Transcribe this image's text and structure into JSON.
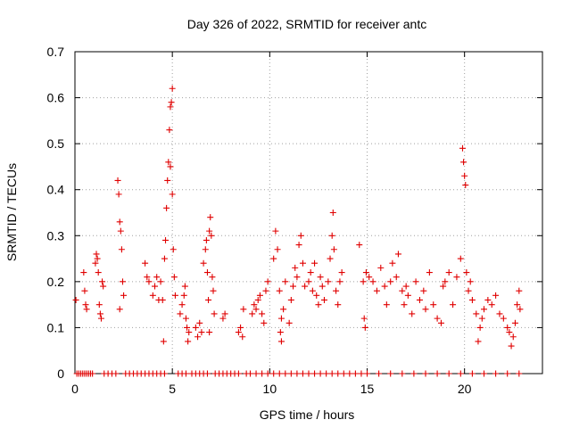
{
  "chart_data": {
    "type": "scatter",
    "title": "Day 326 of 2022, SRMTID for receiver antc",
    "xlabel": "GPS time / hours",
    "ylabel": "SRMTID / TECUs",
    "xlim": [
      0,
      24
    ],
    "ylim": [
      0,
      0.7
    ],
    "x_ticks": [
      0,
      5,
      10,
      15,
      20
    ],
    "y_ticks": [
      0,
      0.1,
      0.2,
      0.3,
      0.4,
      0.5,
      0.6,
      0.7
    ],
    "x_tick_labels": [
      "0",
      "5",
      "10",
      "15",
      "20"
    ],
    "y_tick_labels": [
      "0",
      "0.1",
      "0.2",
      "0.3",
      "0.4",
      "0.5",
      "0.6",
      "0.7"
    ],
    "grid": true,
    "marker": "+",
    "color": "#e00000",
    "series": [
      {
        "name": "antc",
        "points": [
          [
            0.05,
            0.16
          ],
          [
            0.45,
            0.22
          ],
          [
            0.5,
            0.18
          ],
          [
            0.55,
            0.15
          ],
          [
            0.6,
            0.14
          ],
          [
            1.05,
            0.24
          ],
          [
            1.1,
            0.26
          ],
          [
            1.15,
            0.25
          ],
          [
            1.2,
            0.22
          ],
          [
            1.25,
            0.15
          ],
          [
            1.3,
            0.13
          ],
          [
            1.35,
            0.12
          ],
          [
            1.4,
            0.2
          ],
          [
            1.45,
            0.19
          ],
          [
            2.2,
            0.42
          ],
          [
            2.25,
            0.39
          ],
          [
            2.3,
            0.33
          ],
          [
            2.35,
            0.31
          ],
          [
            2.4,
            0.27
          ],
          [
            2.45,
            0.2
          ],
          [
            2.5,
            0.17
          ],
          [
            2.3,
            0.14
          ],
          [
            3.6,
            0.24
          ],
          [
            3.7,
            0.21
          ],
          [
            3.8,
            0.2
          ],
          [
            4.0,
            0.17
          ],
          [
            4.1,
            0.19
          ],
          [
            4.2,
            0.21
          ],
          [
            4.3,
            0.16
          ],
          [
            4.4,
            0.2
          ],
          [
            4.5,
            0.16
          ],
          [
            4.55,
            0.07
          ],
          [
            4.6,
            0.25
          ],
          [
            4.65,
            0.29
          ],
          [
            4.7,
            0.36
          ],
          [
            4.75,
            0.42
          ],
          [
            4.8,
            0.46
          ],
          [
            4.85,
            0.53
          ],
          [
            4.9,
            0.58
          ],
          [
            4.95,
            0.59
          ],
          [
            5.0,
            0.62
          ],
          [
            4.9,
            0.45
          ],
          [
            5.0,
            0.39
          ],
          [
            5.05,
            0.27
          ],
          [
            5.1,
            0.21
          ],
          [
            5.15,
            0.17
          ],
          [
            5.4,
            0.13
          ],
          [
            5.5,
            0.15
          ],
          [
            5.6,
            0.17
          ],
          [
            5.65,
            0.19
          ],
          [
            5.7,
            0.12
          ],
          [
            5.75,
            0.1
          ],
          [
            5.8,
            0.07
          ],
          [
            5.85,
            0.09
          ],
          [
            6.2,
            0.1
          ],
          [
            6.3,
            0.08
          ],
          [
            6.4,
            0.11
          ],
          [
            6.5,
            0.09
          ],
          [
            6.6,
            0.24
          ],
          [
            6.7,
            0.27
          ],
          [
            6.75,
            0.29
          ],
          [
            6.8,
            0.22
          ],
          [
            6.85,
            0.16
          ],
          [
            6.9,
            0.31
          ],
          [
            6.95,
            0.34
          ],
          [
            7.0,
            0.3
          ],
          [
            7.05,
            0.21
          ],
          [
            7.1,
            0.18
          ],
          [
            7.15,
            0.13
          ],
          [
            6.9,
            0.09
          ],
          [
            7.6,
            0.12
          ],
          [
            7.7,
            0.13
          ],
          [
            8.4,
            0.09
          ],
          [
            8.5,
            0.1
          ],
          [
            8.6,
            0.08
          ],
          [
            8.65,
            0.14
          ],
          [
            9.1,
            0.13
          ],
          [
            9.2,
            0.15
          ],
          [
            9.3,
            0.14
          ],
          [
            9.4,
            0.16
          ],
          [
            9.5,
            0.17
          ],
          [
            9.6,
            0.13
          ],
          [
            9.7,
            0.11
          ],
          [
            9.8,
            0.18
          ],
          [
            9.9,
            0.2
          ],
          [
            10.2,
            0.25
          ],
          [
            10.3,
            0.31
          ],
          [
            10.4,
            0.27
          ],
          [
            10.5,
            0.18
          ],
          [
            10.6,
            0.12
          ],
          [
            10.55,
            0.09
          ],
          [
            10.6,
            0.07
          ],
          [
            10.7,
            0.14
          ],
          [
            10.8,
            0.2
          ],
          [
            11.0,
            0.11
          ],
          [
            11.1,
            0.16
          ],
          [
            11.2,
            0.19
          ],
          [
            11.3,
            0.23
          ],
          [
            11.4,
            0.21
          ],
          [
            11.5,
            0.28
          ],
          [
            11.6,
            0.3
          ],
          [
            11.7,
            0.24
          ],
          [
            11.8,
            0.19
          ],
          [
            12.0,
            0.2
          ],
          [
            12.1,
            0.22
          ],
          [
            12.2,
            0.18
          ],
          [
            12.3,
            0.24
          ],
          [
            12.4,
            0.17
          ],
          [
            12.5,
            0.15
          ],
          [
            12.6,
            0.21
          ],
          [
            12.7,
            0.19
          ],
          [
            12.8,
            0.16
          ],
          [
            13.0,
            0.2
          ],
          [
            13.1,
            0.25
          ],
          [
            13.2,
            0.3
          ],
          [
            13.25,
            0.35
          ],
          [
            13.3,
            0.27
          ],
          [
            13.4,
            0.18
          ],
          [
            13.5,
            0.15
          ],
          [
            13.6,
            0.2
          ],
          [
            13.7,
            0.22
          ],
          [
            14.6,
            0.28
          ],
          [
            14.8,
            0.2
          ],
          [
            14.85,
            0.12
          ],
          [
            14.9,
            0.1
          ],
          [
            14.95,
            0.22
          ],
          [
            15.1,
            0.21
          ],
          [
            15.3,
            0.2
          ],
          [
            15.5,
            0.18
          ],
          [
            15.7,
            0.23
          ],
          [
            15.9,
            0.19
          ],
          [
            16.0,
            0.15
          ],
          [
            16.2,
            0.2
          ],
          [
            16.3,
            0.24
          ],
          [
            16.5,
            0.21
          ],
          [
            16.6,
            0.26
          ],
          [
            16.8,
            0.18
          ],
          [
            16.9,
            0.15
          ],
          [
            17.0,
            0.19
          ],
          [
            17.1,
            0.17
          ],
          [
            17.3,
            0.13
          ],
          [
            17.5,
            0.2
          ],
          [
            17.7,
            0.16
          ],
          [
            17.9,
            0.18
          ],
          [
            18.0,
            0.14
          ],
          [
            18.2,
            0.22
          ],
          [
            18.4,
            0.15
          ],
          [
            18.6,
            0.12
          ],
          [
            18.8,
            0.11
          ],
          [
            18.9,
            0.19
          ],
          [
            19.0,
            0.2
          ],
          [
            19.2,
            0.22
          ],
          [
            19.4,
            0.15
          ],
          [
            19.6,
            0.21
          ],
          [
            19.8,
            0.25
          ],
          [
            19.9,
            0.49
          ],
          [
            19.95,
            0.46
          ],
          [
            20.0,
            0.43
          ],
          [
            20.05,
            0.41
          ],
          [
            20.1,
            0.22
          ],
          [
            20.2,
            0.18
          ],
          [
            20.3,
            0.2
          ],
          [
            20.4,
            0.16
          ],
          [
            20.6,
            0.13
          ],
          [
            20.7,
            0.07
          ],
          [
            20.8,
            0.1
          ],
          [
            20.9,
            0.12
          ],
          [
            21.0,
            0.14
          ],
          [
            21.2,
            0.16
          ],
          [
            21.4,
            0.15
          ],
          [
            21.6,
            0.17
          ],
          [
            21.8,
            0.13
          ],
          [
            22.0,
            0.12
          ],
          [
            22.2,
            0.1
          ],
          [
            22.3,
            0.09
          ],
          [
            22.4,
            0.06
          ],
          [
            22.5,
            0.08
          ],
          [
            22.6,
            0.11
          ],
          [
            22.7,
            0.15
          ],
          [
            22.8,
            0.18
          ],
          [
            22.85,
            0.14
          ]
        ],
        "zero_points_x": [
          0.1,
          0.2,
          0.3,
          0.4,
          0.5,
          0.6,
          0.7,
          0.8,
          0.9,
          1.5,
          1.7,
          1.9,
          2.1,
          2.6,
          2.8,
          3.0,
          3.2,
          3.4,
          3.6,
          3.8,
          4.0,
          4.2,
          4.4,
          4.6,
          5.3,
          5.5,
          5.7,
          6.0,
          6.2,
          6.4,
          6.6,
          6.8,
          7.2,
          7.4,
          7.6,
          7.8,
          8.0,
          8.2,
          8.4,
          8.8,
          9.0,
          9.3,
          9.6,
          9.9,
          10.2,
          10.5,
          10.8,
          11.1,
          11.4,
          11.7,
          12.0,
          12.3,
          12.6,
          12.9,
          13.2,
          13.5,
          13.8,
          14.1,
          14.4,
          14.7,
          15.0,
          15.6,
          16.2,
          16.8,
          17.4,
          18.0,
          18.6,
          19.2,
          19.8,
          20.4,
          21.0,
          21.6,
          22.2,
          22.8
        ]
      }
    ]
  }
}
